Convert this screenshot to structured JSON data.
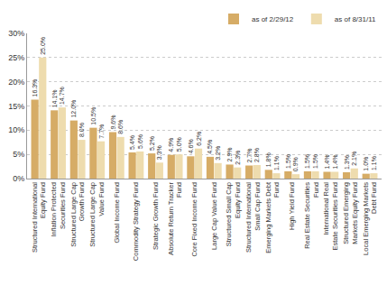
{
  "chart_data": {
    "type": "bar",
    "categories": [
      "Structured International Equity Fund",
      "Inflation Protected Securities Fund",
      "Structured Large Cap Growth Fund",
      "Structured Large Cap Value Fund",
      "Global Income Fund",
      "Commodity Strategy Fund",
      "Strategic Growth Fund",
      "Absolute Return Tracker Fund",
      "Core Fixed Income Fund",
      "Large Cap Value Fund",
      "Structured Small Cap Equity Fund",
      "Structured International Small Cap Fund",
      "Emerging Markets Debt Fund",
      "High Yield Fund",
      "Real Estate Securities Fund",
      "International Real Estate Securities Fund",
      "Structured Emerging Markets Equity Fund",
      "Local Emerging Markets Debt Fund"
    ],
    "series": [
      {
        "name": "as of 2/29/12",
        "color": "#d6ac66",
        "values": [
          16.3,
          14.1,
          12.0,
          10.5,
          9.6,
          5.4,
          5.2,
          4.9,
          4.6,
          4.5,
          2.9,
          2.7,
          1.8,
          1.5,
          1.5,
          1.4,
          1.3,
          1.0
        ],
        "value_labels": [
          "16.3%",
          "14.1%",
          "12.0%",
          "10.5%",
          "9.6%",
          "5.4%",
          "5.2%",
          "4.9%",
          "4.6%",
          "4.5%",
          "2.9%",
          "2.7%",
          "1.8%",
          "1.5%",
          "1.5%",
          "1.4%",
          "1.3%",
          "1.0%"
        ]
      },
      {
        "name": "as of 8/31/11",
        "color": "#eedcae",
        "values": [
          25.0,
          14.7,
          8.0,
          7.7,
          8.6,
          5.6,
          3.3,
          5.0,
          6.2,
          3.2,
          2.3,
          2.8,
          1.1,
          0.9,
          1.5,
          1.4,
          2.1,
          1.1
        ],
        "value_labels": [
          "25.0%",
          "14.7%",
          "8.0%",
          "7.7%",
          "8.6%",
          "5.6%",
          "3.3%",
          "5.0%",
          "6.2%",
          "3.2%",
          "2.3%",
          "2.8%",
          "1.1%",
          "0.9%",
          "1.5%",
          "1.4%",
          "2.1%",
          "1.1%"
        ]
      }
    ],
    "ylim": [
      0,
      30
    ],
    "yticks": [
      {
        "value": 0,
        "label": "0%"
      },
      {
        "value": 5,
        "label": "5%"
      },
      {
        "value": 10,
        "label": "10%"
      },
      {
        "value": 15,
        "label": "15%"
      },
      {
        "value": 20,
        "label": "20%"
      },
      {
        "value": 25,
        "label": "25%"
      },
      {
        "value": 30,
        "label": "30%"
      }
    ],
    "grid": true,
    "legend": "top right",
    "data_labels": true
  }
}
